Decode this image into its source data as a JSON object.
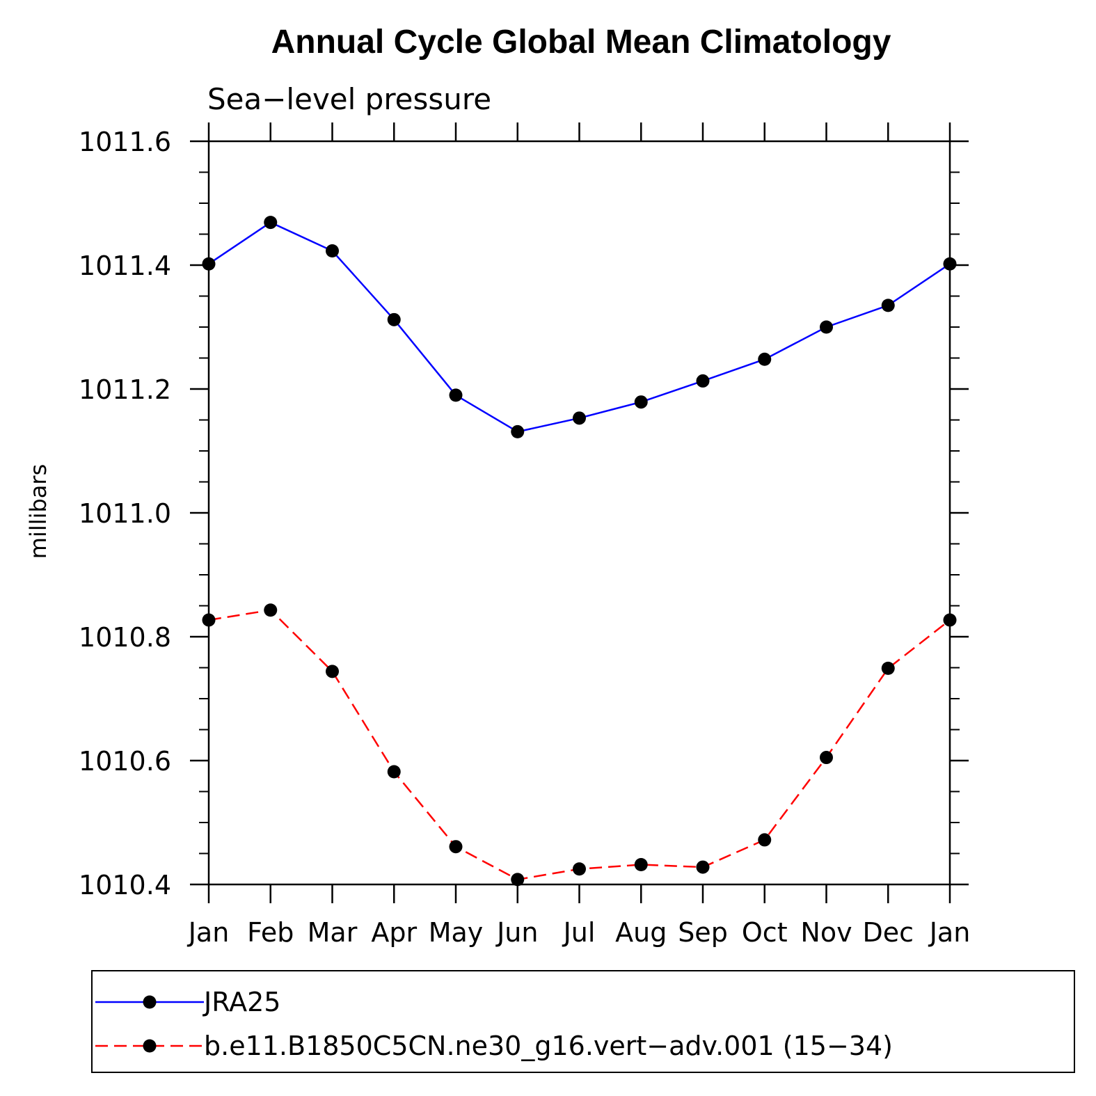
{
  "chart_data": {
    "type": "line",
    "title": "Annual Cycle Global Mean Climatology",
    "subtitle": "Sea−level pressure",
    "xlabel": "",
    "ylabel": "millibars",
    "categories": [
      "Jan",
      "Feb",
      "Mar",
      "Apr",
      "May",
      "Jun",
      "Jul",
      "Aug",
      "Sep",
      "Oct",
      "Nov",
      "Dec",
      "Jan"
    ],
    "ylim": [
      1010.4,
      1011.6
    ],
    "yticks": [
      "1010.4",
      "1010.6",
      "1010.8",
      "1011.0",
      "1011.2",
      "1011.4",
      "1011.6"
    ],
    "series": [
      {
        "name": "JRA25",
        "color": "#0000ff",
        "dash": "solid",
        "values": [
          1011.402,
          1011.469,
          1011.423,
          1011.312,
          1011.19,
          1011.131,
          1011.153,
          1011.179,
          1011.213,
          1011.248,
          1011.3,
          1011.335,
          1011.402
        ]
      },
      {
        "name": "b.e11.B1850C5CN.ne30_g16.vert−adv.001 (15−34)",
        "color": "#ff0000",
        "dash": "dashed",
        "values": [
          1010.827,
          1010.843,
          1010.744,
          1010.582,
          1010.461,
          1010.408,
          1010.425,
          1010.432,
          1010.428,
          1010.472,
          1010.605,
          1010.749,
          1010.827
        ]
      }
    ],
    "marker_color": "#000000",
    "legend_position": "bottom"
  }
}
